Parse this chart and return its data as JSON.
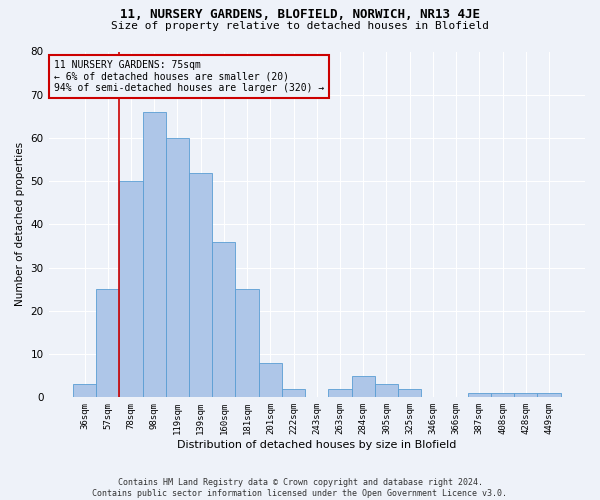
{
  "title_line1": "11, NURSERY GARDENS, BLOFIELD, NORWICH, NR13 4JE",
  "title_line2": "Size of property relative to detached houses in Blofield",
  "xlabel": "Distribution of detached houses by size in Blofield",
  "ylabel": "Number of detached properties",
  "footnote": "Contains HM Land Registry data © Crown copyright and database right 2024.\nContains public sector information licensed under the Open Government Licence v3.0.",
  "categories": [
    "36sqm",
    "57sqm",
    "78sqm",
    "98sqm",
    "119sqm",
    "139sqm",
    "160sqm",
    "181sqm",
    "201sqm",
    "222sqm",
    "243sqm",
    "263sqm",
    "284sqm",
    "305sqm",
    "325sqm",
    "346sqm",
    "366sqm",
    "387sqm",
    "408sqm",
    "428sqm",
    "449sqm"
  ],
  "values": [
    3,
    25,
    50,
    66,
    60,
    52,
    36,
    25,
    8,
    2,
    0,
    2,
    5,
    3,
    2,
    0,
    0,
    1,
    1,
    1,
    1
  ],
  "bar_color": "#aec6e8",
  "bar_edge_color": "#5a9ed4",
  "property_line_color": "#cc0000",
  "annotation_text": "11 NURSERY GARDENS: 75sqm\n← 6% of detached houses are smaller (20)\n94% of semi-detached houses are larger (320) →",
  "annotation_box_color": "#cc0000",
  "background_color": "#eef2f9",
  "ylim": [
    0,
    80
  ],
  "yticks": [
    0,
    10,
    20,
    30,
    40,
    50,
    60,
    70,
    80
  ]
}
